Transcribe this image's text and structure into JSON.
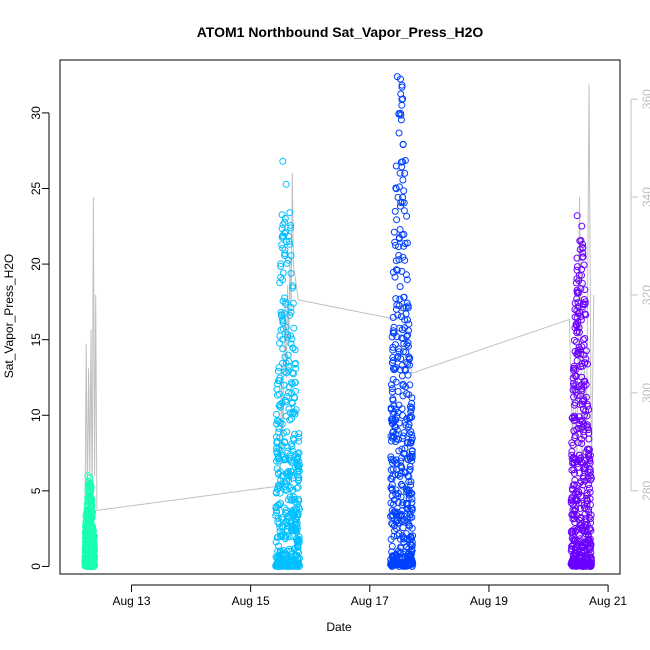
{
  "chart_data": {
    "type": "scatter",
    "title": "ATOM1 Northbound Sat_Vapor_Press_H2O",
    "xlabel": "Date",
    "ylabel": "Sat_Vapor_Press_H2O",
    "x_tick_labels": [
      "Aug 13",
      "Aug 15",
      "Aug 17",
      "Aug 19",
      "Aug 21"
    ],
    "x_tick_days": [
      13,
      15,
      17,
      19,
      21
    ],
    "xlim_days": [
      11.8,
      21.2
    ],
    "ylim": [
      -0.5,
      33.5
    ],
    "y_ticks": [
      0,
      5,
      10,
      15,
      20,
      25,
      30
    ],
    "y2lim": [
      263,
      368
    ],
    "y2_ticks": [
      280,
      300,
      320,
      340,
      360
    ],
    "grid": false,
    "legend": "none",
    "series": [
      {
        "color": "#1affb0",
        "day_start": 12.22,
        "day_end": 12.38,
        "y_min": 0,
        "y_max": 6.0
      },
      {
        "color": "#00bfff",
        "day_start": 15.42,
        "day_end": 15.82,
        "y_min": 0,
        "y_max": 26.8
      },
      {
        "color": "#0040ff",
        "day_start": 17.35,
        "day_end": 17.72,
        "y_min": 0,
        "y_max": 32.4
      },
      {
        "color": "#6a00ff",
        "day_start": 20.38,
        "day_end": 20.72,
        "y_min": 0,
        "y_max": 23.2
      }
    ],
    "secondary_line": {
      "color": "#c0c0c0",
      "points": [
        [
          12.22,
          275
        ],
        [
          12.24,
          310
        ],
        [
          12.26,
          278
        ],
        [
          12.28,
          305
        ],
        [
          12.3,
          283
        ],
        [
          12.32,
          313
        ],
        [
          12.34,
          276
        ],
        [
          12.36,
          340
        ],
        [
          12.38,
          283
        ],
        [
          12.4,
          320
        ],
        [
          12.42,
          276
        ],
        [
          15.5,
          281
        ],
        [
          15.52,
          306
        ],
        [
          15.54,
          288
        ],
        [
          15.56,
          308
        ],
        [
          15.58,
          318
        ],
        [
          15.6,
          303
        ],
        [
          15.62,
          322
        ],
        [
          15.64,
          310
        ],
        [
          15.66,
          328
        ],
        [
          15.68,
          316
        ],
        [
          15.7,
          345
        ],
        [
          15.72,
          326
        ],
        [
          15.8,
          319
        ],
        [
          17.45,
          315
        ],
        [
          17.55,
          318
        ],
        [
          17.7,
          304
        ],
        [
          20.35,
          315
        ],
        [
          20.4,
          290
        ],
        [
          20.44,
          305
        ],
        [
          20.48,
          286
        ],
        [
          20.52,
          340
        ],
        [
          20.56,
          286
        ],
        [
          20.6,
          305
        ],
        [
          20.64,
          290
        ],
        [
          20.68,
          363
        ],
        [
          20.72,
          282
        ],
        [
          20.76,
          320
        ]
      ]
    }
  }
}
